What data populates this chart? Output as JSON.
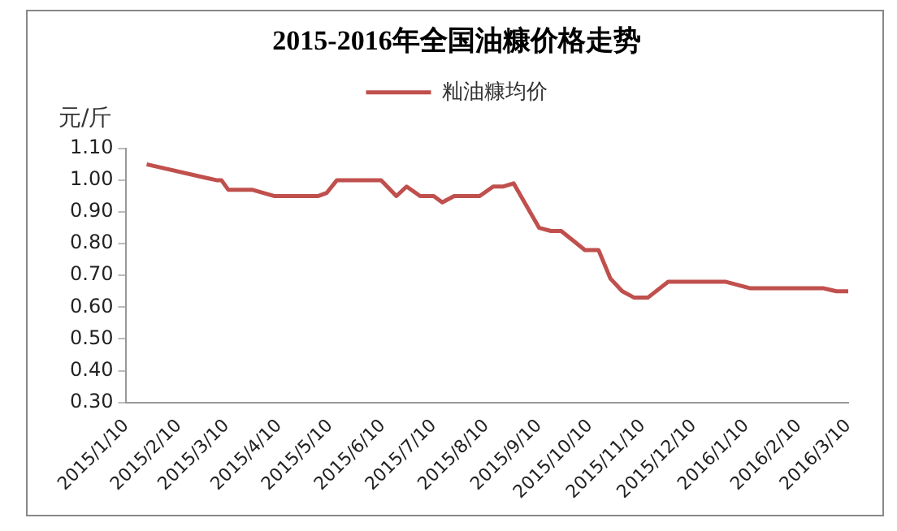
{
  "chart_data": {
    "type": "line",
    "title": "2015-2016年全国油糠价格走势",
    "ylabel": "元/斤",
    "x": [
      "2015-01-22",
      "2015-03-04",
      "2015-03-07",
      "2015-03-11",
      "2015-03-25",
      "2015-04-07",
      "2015-05-03",
      "2015-05-08",
      "2015-05-14",
      "2015-06-09",
      "2015-06-18",
      "2015-06-24",
      "2015-07-02",
      "2015-07-10",
      "2015-07-15",
      "2015-07-22",
      "2015-08-06",
      "2015-08-14",
      "2015-08-20",
      "2015-08-26",
      "2015-09-10",
      "2015-09-17",
      "2015-09-23",
      "2015-10-07",
      "2015-10-15",
      "2015-10-22",
      "2015-10-29",
      "2015-11-05",
      "2015-11-13",
      "2015-11-25",
      "2015-12-29",
      "2016-01-12",
      "2016-02-24",
      "2016-03-03",
      "2016-03-10"
    ],
    "series": [
      {
        "name": "籼油糠均价",
        "color": "#c0504d",
        "values": [
          1.05,
          1.0,
          1.0,
          0.97,
          0.97,
          0.95,
          0.95,
          0.96,
          1.0,
          1.0,
          0.95,
          0.98,
          0.95,
          0.95,
          0.93,
          0.95,
          0.95,
          0.98,
          0.98,
          0.99,
          0.85,
          0.84,
          0.84,
          0.78,
          0.78,
          0.69,
          0.65,
          0.63,
          0.63,
          0.68,
          0.68,
          0.66,
          0.66,
          0.65,
          0.65
        ]
      }
    ],
    "xlim": [
      "2015-01-10",
      "2016-03-10"
    ],
    "xticks": [
      {
        "value": "2015-01-10",
        "label": "2015/1/10"
      },
      {
        "value": "2015-02-10",
        "label": "2015/2/10"
      },
      {
        "value": "2015-03-10",
        "label": "2015/3/10"
      },
      {
        "value": "2015-04-10",
        "label": "2015/4/10"
      },
      {
        "value": "2015-05-10",
        "label": "2015/5/10"
      },
      {
        "value": "2015-06-10",
        "label": "2015/6/10"
      },
      {
        "value": "2015-07-10",
        "label": "2015/7/10"
      },
      {
        "value": "2015-08-10",
        "label": "2015/8/10"
      },
      {
        "value": "2015-09-10",
        "label": "2015/9/10"
      },
      {
        "value": "2015-10-10",
        "label": "2015/10/10"
      },
      {
        "value": "2015-11-10",
        "label": "2015/11/10"
      },
      {
        "value": "2015-12-10",
        "label": "2015/12/10"
      },
      {
        "value": "2016-01-10",
        "label": "2016/1/10"
      },
      {
        "value": "2016-02-10",
        "label": "2016/2/10"
      },
      {
        "value": "2016-03-10",
        "label": "2016/3/10"
      }
    ],
    "ylim": [
      0.3,
      1.1
    ],
    "yticks": [
      {
        "value": 0.3,
        "label": "0.30"
      },
      {
        "value": 0.4,
        "label": "0.40"
      },
      {
        "value": 0.5,
        "label": "0.50"
      },
      {
        "value": 0.6,
        "label": "0.60"
      },
      {
        "value": 0.7,
        "label": "0.70"
      },
      {
        "value": 0.8,
        "label": "0.80"
      },
      {
        "value": 0.9,
        "label": "0.90"
      },
      {
        "value": 1.0,
        "label": "1.00"
      },
      {
        "value": 1.1,
        "label": "1.10"
      }
    ],
    "grid": false,
    "legend": "top",
    "marker": "none",
    "line_style": "solid"
  }
}
